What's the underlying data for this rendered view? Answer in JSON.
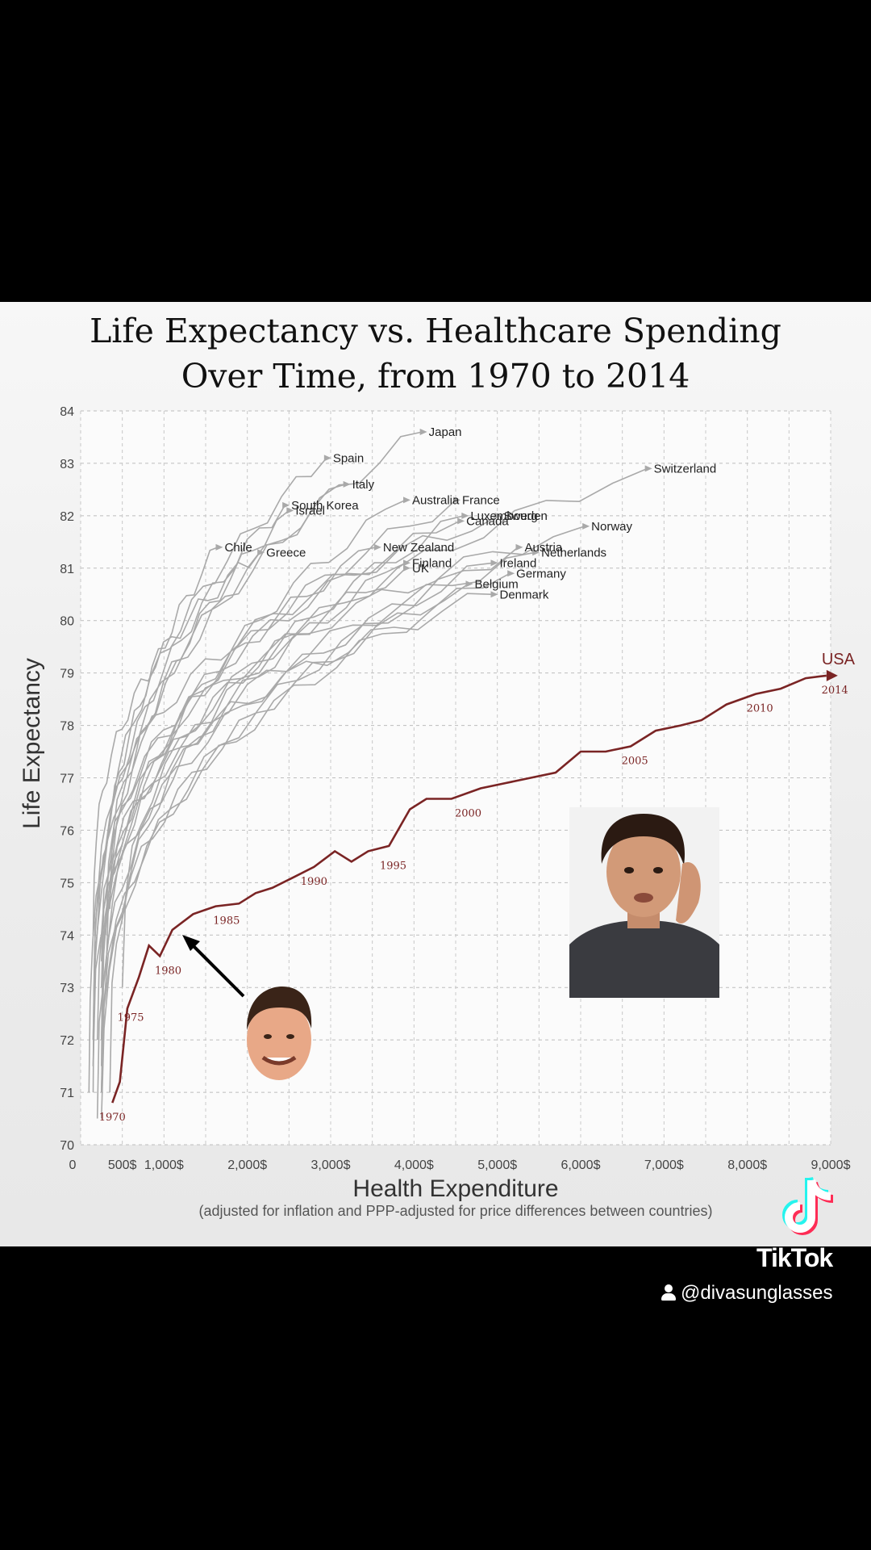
{
  "chart_data": {
    "type": "line",
    "title_lines": [
      "Life Expectancy vs. Healthcare Spending",
      "Over Time, from 1970 to 2014"
    ],
    "xlabel": "Health Expenditure",
    "xlabel_sub": "(adjusted for inflation and PPP-adjusted for price differences between countries)",
    "ylabel": "Life Expectancy",
    "xlim": [
      0,
      9000
    ],
    "ylim": [
      70,
      84
    ],
    "x_tick_labels": [
      "0",
      "500$",
      "1,000$",
      "2,000$",
      "3,000$",
      "4,000$",
      "5,000$",
      "6,000$",
      "7,000$",
      "8,000$",
      "9,000$"
    ],
    "x_tick_values": [
      0,
      500,
      1000,
      2000,
      3000,
      4000,
      5000,
      6000,
      7000,
      8000,
      9000
    ],
    "y_ticks": [
      70,
      71,
      72,
      73,
      74,
      75,
      76,
      77,
      78,
      79,
      80,
      81,
      82,
      83,
      84
    ],
    "grid": true,
    "highlight_series": {
      "name": "USA",
      "color": "#7a2424",
      "points": [
        [
          380,
          70.8
        ],
        [
          470,
          71.2
        ],
        [
          560,
          72.6
        ],
        [
          700,
          73.2
        ],
        [
          820,
          73.8
        ],
        [
          950,
          73.6
        ],
        [
          1100,
          74.1
        ],
        [
          1350,
          74.4
        ],
        [
          1620,
          74.55
        ],
        [
          1900,
          74.6
        ],
        [
          2100,
          74.8
        ],
        [
          2300,
          74.9
        ],
        [
          2550,
          75.1
        ],
        [
          2800,
          75.3
        ],
        [
          3050,
          75.6
        ],
        [
          3250,
          75.4
        ],
        [
          3450,
          75.6
        ],
        [
          3700,
          75.7
        ],
        [
          3950,
          76.4
        ],
        [
          4150,
          76.6
        ],
        [
          4450,
          76.6
        ],
        [
          4800,
          76.8
        ],
        [
          5100,
          76.9
        ],
        [
          5400,
          77.0
        ],
        [
          5700,
          77.1
        ],
        [
          6000,
          77.5
        ],
        [
          6300,
          77.5
        ],
        [
          6600,
          77.6
        ],
        [
          6900,
          77.9
        ],
        [
          7200,
          78.0
        ],
        [
          7450,
          78.1
        ],
        [
          7750,
          78.4
        ],
        [
          8100,
          78.6
        ],
        [
          8400,
          78.7
        ],
        [
          8700,
          78.9
        ],
        [
          8950,
          78.95
        ]
      ],
      "year_labels": [
        {
          "year": "1970",
          "x": 380,
          "y": 70.8
        },
        {
          "year": "1975",
          "x": 600,
          "y": 72.7
        },
        {
          "year": "1980",
          "x": 1050,
          "y": 73.6
        },
        {
          "year": "1985",
          "x": 1750,
          "y": 74.55
        },
        {
          "year": "1990",
          "x": 2800,
          "y": 75.3
        },
        {
          "year": "1995",
          "x": 3750,
          "y": 75.6
        },
        {
          "year": "2000",
          "x": 4650,
          "y": 76.6
        },
        {
          "year": "2005",
          "x": 6650,
          "y": 77.6
        },
        {
          "year": "2010",
          "x": 8150,
          "y": 78.6
        },
        {
          "year": "2014",
          "x": 9050,
          "y": 78.95
        }
      ]
    },
    "series": [
      {
        "name": "Japan",
        "end": [
          4100,
          83.6
        ],
        "start": [
          150,
          72.0
        ]
      },
      {
        "name": "Spain",
        "end": [
          2950,
          83.1
        ],
        "start": [
          150,
          72.0
        ]
      },
      {
        "name": "Switzerland",
        "end": [
          6800,
          82.9
        ],
        "start": [
          500,
          73.0
        ]
      },
      {
        "name": "Italy",
        "end": [
          3180,
          82.6
        ],
        "start": [
          150,
          71.5
        ]
      },
      {
        "name": "South Korea",
        "end": [
          2450,
          82.2
        ],
        "start": [
          100,
          71.0
        ]
      },
      {
        "name": "Israel",
        "end": [
          2500,
          82.1
        ],
        "start": [
          250,
          71.5
        ]
      },
      {
        "name": "Australia",
        "end": [
          3900,
          82.3
        ],
        "start": [
          250,
          71.0
        ]
      },
      {
        "name": "France",
        "end": [
          4500,
          82.3
        ],
        "start": [
          250,
          72.0
        ]
      },
      {
        "name": "Luxembourg",
        "end": [
          4600,
          82.0
        ],
        "start": [
          350,
          71.0
        ]
      },
      {
        "name": "Canada",
        "end": [
          4550,
          81.9
        ],
        "start": [
          250,
          73.0
        ]
      },
      {
        "name": "Sweden",
        "end": [
          5000,
          82.0
        ],
        "start": [
          350,
          74.5
        ]
      },
      {
        "name": "Chile",
        "end": [
          1650,
          81.4
        ],
        "start": [
          150,
          71.0
        ]
      },
      {
        "name": "Greece",
        "end": [
          2150,
          81.3
        ],
        "start": [
          150,
          74.0
        ]
      },
      {
        "name": "Norway",
        "end": [
          6050,
          81.8
        ],
        "start": [
          300,
          74.0
        ]
      },
      {
        "name": "New Zealand",
        "end": [
          3550,
          81.4
        ],
        "start": [
          250,
          72.0
        ]
      },
      {
        "name": "Austria",
        "end": [
          5250,
          81.4
        ],
        "start": [
          250,
          70.5
        ]
      },
      {
        "name": "Netherlands",
        "end": [
          5450,
          81.3
        ],
        "start": [
          300,
          73.0
        ]
      },
      {
        "name": "Finland",
        "end": [
          3900,
          81.1
        ],
        "start": [
          200,
          70.5
        ]
      },
      {
        "name": "UK",
        "end": [
          3900,
          81.0
        ],
        "start": [
          200,
          72.0
        ]
      },
      {
        "name": "Ireland",
        "end": [
          4950,
          81.1
        ],
        "start": [
          150,
          71.5
        ]
      },
      {
        "name": "Germany",
        "end": [
          5150,
          80.9
        ],
        "start": [
          250,
          71.0
        ]
      },
      {
        "name": "Belgium",
        "end": [
          4650,
          80.7
        ],
        "start": [
          250,
          71.0
        ]
      },
      {
        "name": "Denmark",
        "end": [
          4950,
          80.5
        ],
        "start": [
          250,
          73.5
        ]
      }
    ]
  },
  "overlay": {
    "tiktok_wordmark": "TikTok",
    "handle": "@divasunglasses",
    "accent_cyan": "#25f4ee",
    "accent_red": "#fe2c55"
  }
}
